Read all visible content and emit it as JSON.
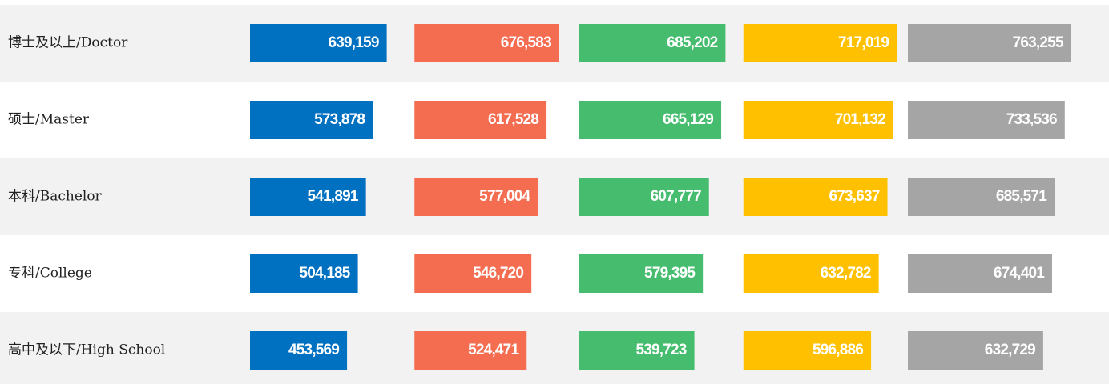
{
  "chart_data": {
    "type": "bar",
    "categories": [
      "博士及以上/Doctor",
      "硕士/Master",
      "本科/Bachelor",
      "专科/College",
      "高中及以下/High School"
    ],
    "xlim": [
      0,
      768000
    ],
    "series": [
      {
        "color": "#0070c0",
        "values": [
          639159,
          573878,
          541891,
          504185,
          453569
        ],
        "value_labels": [
          "639,159",
          "573,878",
          "541,891",
          "504,185",
          "453,569"
        ]
      },
      {
        "color": "#f46d51",
        "values": [
          676583,
          617528,
          577004,
          546720,
          524471
        ],
        "value_labels": [
          "676,583",
          "617,528",
          "577,004",
          "546,720",
          "524,471"
        ]
      },
      {
        "color": "#46bd6e",
        "values": [
          685202,
          665129,
          607777,
          579395,
          539723
        ],
        "value_labels": [
          "685,202",
          "665,129",
          "607,777",
          "579,395",
          "539,723"
        ]
      },
      {
        "color": "#ffc000",
        "values": [
          717019,
          701132,
          673637,
          632782,
          596886
        ],
        "value_labels": [
          "717,019",
          "701,132",
          "673,637",
          "632,782",
          "596,886"
        ]
      },
      {
        "color": "#a5a5a5",
        "values": [
          763255,
          733536,
          685571,
          674401,
          632729
        ],
        "value_labels": [
          "763,255",
          "733,536",
          "685,571",
          "674,401",
          "632,729"
        ]
      }
    ]
  }
}
